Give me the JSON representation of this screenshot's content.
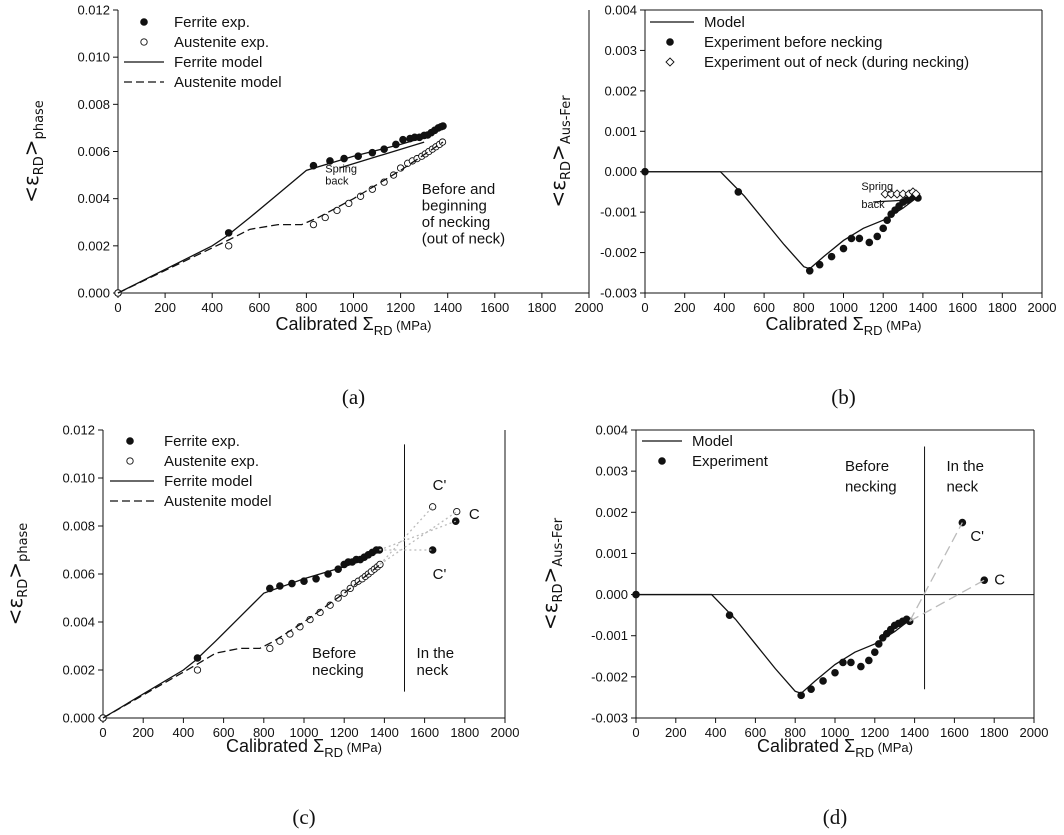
{
  "chart_data": [
    {
      "type": "scatter",
      "panel_label": "(a)",
      "xlabel_prefix": "Calibrated Σ",
      "xlabel_sub": "RD",
      "xlabel_unit": " (MPa)",
      "ylabel_prefix": "<ε",
      "ylabel_sub1": "RD",
      "ylabel_mid": ">",
      "ylabel_sub2": "phase",
      "xlim": [
        0,
        2000
      ],
      "ylim": [
        0,
        0.012
      ],
      "xticks": [
        "0",
        "200",
        "400",
        "600",
        "800",
        "1000",
        "1200",
        "1400",
        "1600",
        "1800",
        "2000"
      ],
      "yticks": [
        "0.000",
        "0.002",
        "0.004",
        "0.006",
        "0.008",
        "0.010",
        "0.012"
      ],
      "legend": [
        {
          "label": "Ferrite exp.",
          "style": "filled"
        },
        {
          "label": "Austenite exp.",
          "style": "open"
        },
        {
          "label": "Ferrite model",
          "style": "solid"
        },
        {
          "label": "Austenite model",
          "style": "dashed"
        }
      ],
      "annotations": [
        {
          "text": "Spring",
          "small": true,
          "x": 880,
          "y": 0.0051
        },
        {
          "text": "back",
          "small": true,
          "x": 880,
          "y": 0.0046
        },
        {
          "text": "Before and",
          "x": 1290,
          "y": 0.0042
        },
        {
          "text": "beginning",
          "x": 1290,
          "y": 0.0035
        },
        {
          "text": "of necking",
          "x": 1290,
          "y": 0.0028
        },
        {
          "text": "(out of neck)",
          "x": 1290,
          "y": 0.0021
        }
      ],
      "series": [
        {
          "name": "Ferrite exp.",
          "kind": "marker",
          "marker": "filled",
          "x": [
            0,
            470,
            830,
            900,
            960,
            1020,
            1080,
            1130,
            1180,
            1210,
            1240,
            1260,
            1280,
            1300,
            1315,
            1330,
            1345,
            1360,
            1372,
            1380
          ],
          "y": [
            0,
            0.00255,
            0.0054,
            0.0056,
            0.0057,
            0.0058,
            0.00595,
            0.0061,
            0.0063,
            0.0065,
            0.00655,
            0.0066,
            0.0066,
            0.00668,
            0.0067,
            0.0068,
            0.0069,
            0.007,
            0.00705,
            0.00708
          ]
        },
        {
          "name": "Austenite exp.",
          "kind": "marker",
          "marker": "open",
          "x": [
            0,
            470,
            830,
            880,
            930,
            980,
            1030,
            1080,
            1130,
            1170,
            1200,
            1230,
            1250,
            1270,
            1290,
            1305,
            1320,
            1335,
            1350,
            1365,
            1378
          ],
          "y": [
            0,
            0.002,
            0.0029,
            0.0032,
            0.0035,
            0.0038,
            0.0041,
            0.0044,
            0.0047,
            0.005,
            0.0053,
            0.0055,
            0.0056,
            0.0057,
            0.0058,
            0.0059,
            0.006,
            0.0061,
            0.0062,
            0.0063,
            0.0064
          ]
        },
        {
          "name": "Ferrite model",
          "kind": "line",
          "dash": "",
          "x": [
            0,
            400,
            460,
            560,
            680,
            800,
            1000,
            1200,
            1300,
            1380
          ],
          "y": [
            0,
            0.002,
            0.0024,
            0.0032,
            0.0042,
            0.0052,
            0.0058,
            0.0063,
            0.0066,
            0.007
          ]
        },
        {
          "name": "Austenite model",
          "kind": "line",
          "dash": "8,4",
          "x": [
            0,
            460,
            560,
            680,
            780,
            850,
            1000,
            1200,
            1380
          ],
          "y": [
            0,
            0.0022,
            0.0027,
            0.0029,
            0.0029,
            0.0032,
            0.004,
            0.0052,
            0.0064
          ]
        },
        {
          "name": "",
          "kind": "line",
          "dash": "",
          "x": [
            940,
            1300
          ],
          "y": [
            0.0053,
            0.0064
          ]
        }
      ]
    },
    {
      "type": "scatter",
      "panel_label": "(b)",
      "xlabel_prefix": "Calibrated Σ",
      "xlabel_sub": "RD",
      "xlabel_unit": " (MPa)",
      "ylabel_prefix": "<ε",
      "ylabel_sub1": "RD",
      "ylabel_mid": ">",
      "ylabel_sub2": "Aus-Fer",
      "xlim": [
        0,
        2000
      ],
      "ylim": [
        -0.003,
        0.004
      ],
      "xticks": [
        "0",
        "200",
        "400",
        "600",
        "800",
        "1000",
        "1200",
        "1400",
        "1600",
        "1800",
        "2000"
      ],
      "yticks": [
        "-0.003",
        "-0.002",
        "-0.001",
        "0.000",
        "0.001",
        "0.002",
        "0.003",
        "0.004"
      ],
      "zero_line": true,
      "legend": [
        {
          "label": "Model",
          "style": "solid"
        },
        {
          "label": "Experiment before necking",
          "style": "filled"
        },
        {
          "label": "Experiment out of neck (during necking)",
          "style": "diamond"
        }
      ],
      "annotations": [
        {
          "text": "Spring",
          "small": true,
          "x": 1090,
          "y": -0.00045
        },
        {
          "text": "back",
          "small": true,
          "x": 1090,
          "y": -0.0009
        }
      ],
      "series": [
        {
          "name": "Model",
          "kind": "line",
          "dash": "",
          "x": [
            0,
            380,
            400,
            500,
            600,
            700,
            800,
            830,
            900,
            1000,
            1100,
            1200,
            1300,
            1380
          ],
          "y": [
            0,
            0,
            -0.0001,
            -0.0006,
            -0.0012,
            -0.0018,
            -0.00235,
            -0.0024,
            -0.0021,
            -0.0017,
            -0.0014,
            -0.0012,
            -0.0009,
            -0.0006
          ]
        },
        {
          "name": "Experiment before necking",
          "kind": "marker",
          "marker": "filled",
          "x": [
            0,
            470,
            830,
            880,
            940,
            1000,
            1040,
            1080,
            1130,
            1170,
            1200,
            1220,
            1240,
            1260,
            1280,
            1300,
            1320,
            1340,
            1360,
            1375
          ],
          "y": [
            0,
            -0.0005,
            -0.00245,
            -0.0023,
            -0.0021,
            -0.0019,
            -0.00165,
            -0.00165,
            -0.00175,
            -0.0016,
            -0.0014,
            -0.0012,
            -0.00105,
            -0.00095,
            -0.00085,
            -0.00075,
            -0.0007,
            -0.00065,
            -0.0006,
            -0.00065
          ]
        },
        {
          "name": "Experiment out of neck (during necking)",
          "kind": "marker",
          "marker": "diamond",
          "x": [
            1210,
            1240,
            1270,
            1300,
            1330,
            1350,
            1365
          ],
          "y": [
            -0.00055,
            -0.00055,
            -0.00055,
            -0.00055,
            -0.00055,
            -0.0005,
            -0.00055
          ]
        },
        {
          "name": "",
          "kind": "line",
          "dash": "",
          "x": [
            1150,
            1320
          ],
          "y": [
            -0.00075,
            -0.0007
          ]
        }
      ]
    },
    {
      "type": "scatter",
      "panel_label": "(c)",
      "xlabel_prefix": "Calibrated Σ",
      "xlabel_sub": "RD",
      "xlabel_unit": " (MPa)",
      "ylabel_prefix": "<ε",
      "ylabel_sub1": "RD",
      "ylabel_mid": ">",
      "ylabel_sub2": "phase",
      "xlim": [
        0,
        2000
      ],
      "ylim": [
        0,
        0.012
      ],
      "xticks": [
        "0",
        "200",
        "400",
        "600",
        "800",
        "1000",
        "1200",
        "1400",
        "1600",
        "1800",
        "2000"
      ],
      "yticks": [
        "0.000",
        "0.002",
        "0.004",
        "0.006",
        "0.008",
        "0.010",
        "0.012"
      ],
      "vline_x": 1500,
      "vline_y": [
        0.0011,
        0.0114
      ],
      "legend": [
        {
          "label": "Ferrite exp.",
          "style": "filled"
        },
        {
          "label": "Austenite exp.",
          "style": "open"
        },
        {
          "label": "Ferrite model",
          "style": "solid"
        },
        {
          "label": "Austenite model",
          "style": "dashed"
        }
      ],
      "annotations": [
        {
          "text": "Before",
          "x": 1040,
          "y": 0.0025
        },
        {
          "text": "necking",
          "x": 1040,
          "y": 0.0018
        },
        {
          "text": "In the",
          "x": 1560,
          "y": 0.0025
        },
        {
          "text": "neck",
          "x": 1560,
          "y": 0.0018
        },
        {
          "text": "C'",
          "x": 1640,
          "y": 0.0095
        },
        {
          "text": "C",
          "x": 1820,
          "y": 0.0083
        },
        {
          "text": "C'",
          "x": 1640,
          "y": 0.0058
        }
      ],
      "series": [
        {
          "name": "Ferrite exp.",
          "kind": "marker",
          "marker": "filled",
          "x": [
            0,
            470,
            830,
            880,
            940,
            1000,
            1060,
            1120,
            1170,
            1200,
            1220,
            1240,
            1260,
            1280,
            1300,
            1320,
            1340,
            1360,
            1375,
            1640,
            1755
          ],
          "y": [
            0,
            0.0025,
            0.0054,
            0.0055,
            0.0056,
            0.0057,
            0.0058,
            0.006,
            0.0062,
            0.0064,
            0.0065,
            0.0065,
            0.0066,
            0.0066,
            0.0067,
            0.0068,
            0.0069,
            0.007,
            0.007,
            0.007,
            0.0082
          ]
        },
        {
          "name": "Austenite exp.",
          "kind": "marker",
          "marker": "open",
          "x": [
            0,
            470,
            830,
            880,
            930,
            980,
            1030,
            1080,
            1130,
            1170,
            1200,
            1230,
            1250,
            1270,
            1290,
            1305,
            1320,
            1335,
            1350,
            1365,
            1378,
            1640,
            1760
          ],
          "y": [
            0,
            0.002,
            0.0029,
            0.0032,
            0.0035,
            0.0038,
            0.0041,
            0.0044,
            0.0047,
            0.005,
            0.0052,
            0.0054,
            0.0056,
            0.0057,
            0.0058,
            0.0059,
            0.006,
            0.0061,
            0.0062,
            0.0063,
            0.0064,
            0.0088,
            0.0086
          ]
        },
        {
          "name": "Ferrite model",
          "kind": "line",
          "dash": "",
          "x": [
            0,
            400,
            460,
            560,
            680,
            800,
            1000,
            1200,
            1300,
            1380
          ],
          "y": [
            0,
            0.002,
            0.0024,
            0.0032,
            0.0042,
            0.0052,
            0.0058,
            0.0063,
            0.0066,
            0.007
          ]
        },
        {
          "name": "Austenite model",
          "kind": "line",
          "dash": "8,4",
          "x": [
            0,
            460,
            560,
            680,
            780,
            850,
            1000,
            1200,
            1380
          ],
          "y": [
            0,
            0.0022,
            0.0027,
            0.0029,
            0.0029,
            0.0032,
            0.004,
            0.0052,
            0.0064
          ]
        },
        {
          "name": "",
          "kind": "line",
          "dash": "2,3",
          "color": "#bbbbbb",
          "x": [
            1378,
            1640
          ],
          "y": [
            0.0064,
            0.0088
          ]
        },
        {
          "name": "",
          "kind": "line",
          "dash": "2,3",
          "color": "#bbbbbb",
          "x": [
            1378,
            1760
          ],
          "y": [
            0.0064,
            0.0086
          ]
        },
        {
          "name": "",
          "kind": "line",
          "dash": "2,3",
          "color": "#bbbbbb",
          "x": [
            1375,
            1640
          ],
          "y": [
            0.007,
            0.007
          ]
        },
        {
          "name": "",
          "kind": "line",
          "dash": "2,3",
          "color": "#bbbbbb",
          "x": [
            1375,
            1755
          ],
          "y": [
            0.007,
            0.0082
          ]
        }
      ]
    },
    {
      "type": "scatter",
      "panel_label": "(d)",
      "xlabel_prefix": "Calibrated Σ",
      "xlabel_sub": "RD",
      "xlabel_unit": " (MPa)",
      "ylabel_prefix": "<ε",
      "ylabel_sub1": "RD",
      "ylabel_mid": ">",
      "ylabel_sub2": "Aus-Fer",
      "xlim": [
        0,
        2000
      ],
      "ylim": [
        -0.003,
        0.004
      ],
      "xticks": [
        "0",
        "200",
        "400",
        "600",
        "800",
        "1000",
        "1200",
        "1400",
        "1600",
        "1800",
        "2000"
      ],
      "yticks": [
        "-0.003",
        "-0.002",
        "-0.001",
        "0.000",
        "0.001",
        "0.002",
        "0.003",
        "0.004"
      ],
      "zero_line": true,
      "vline_x": 1450,
      "vline_y": [
        -0.0023,
        0.0036
      ],
      "legend": [
        {
          "label": "Model",
          "style": "solid"
        },
        {
          "label": "Experiment",
          "style": "filled"
        }
      ],
      "annotations": [
        {
          "text": "Before",
          "x": 1050,
          "y": 0.003
        },
        {
          "text": "necking",
          "x": 1050,
          "y": 0.0025
        },
        {
          "text": "In the",
          "x": 1560,
          "y": 0.003
        },
        {
          "text": "neck",
          "x": 1560,
          "y": 0.0025
        },
        {
          "text": "C'",
          "x": 1680,
          "y": 0.0013
        },
        {
          "text": "C",
          "x": 1800,
          "y": 0.00025
        }
      ],
      "series": [
        {
          "name": "Model",
          "kind": "line",
          "dash": "",
          "x": [
            0,
            380,
            400,
            500,
            600,
            700,
            800,
            830,
            900,
            1000,
            1100,
            1200,
            1300,
            1380
          ],
          "y": [
            0,
            0,
            -0.0001,
            -0.0006,
            -0.0012,
            -0.0018,
            -0.00235,
            -0.0024,
            -0.0021,
            -0.0017,
            -0.0014,
            -0.0012,
            -0.0009,
            -0.0006
          ]
        },
        {
          "name": "Experiment",
          "kind": "marker",
          "marker": "filled",
          "x": [
            0,
            470,
            830,
            880,
            940,
            1000,
            1040,
            1080,
            1130,
            1170,
            1200,
            1220,
            1240,
            1260,
            1280,
            1300,
            1320,
            1340,
            1360,
            1375,
            1640,
            1750
          ],
          "y": [
            0,
            -0.0005,
            -0.00245,
            -0.0023,
            -0.0021,
            -0.0019,
            -0.00165,
            -0.00165,
            -0.00175,
            -0.0016,
            -0.0014,
            -0.0012,
            -0.00105,
            -0.00095,
            -0.00085,
            -0.00075,
            -0.0007,
            -0.00065,
            -0.0006,
            -0.00065,
            0.00175,
            0.00035
          ]
        },
        {
          "name": "",
          "kind": "line",
          "dash": "10,5",
          "color": "#bbbbbb",
          "x": [
            1375,
            1640
          ],
          "y": [
            -0.00065,
            0.00175
          ]
        },
        {
          "name": "",
          "kind": "line",
          "dash": "10,5",
          "color": "#bbbbbb",
          "x": [
            1375,
            1750
          ],
          "y": [
            -0.00065,
            0.00035
          ]
        }
      ]
    }
  ]
}
